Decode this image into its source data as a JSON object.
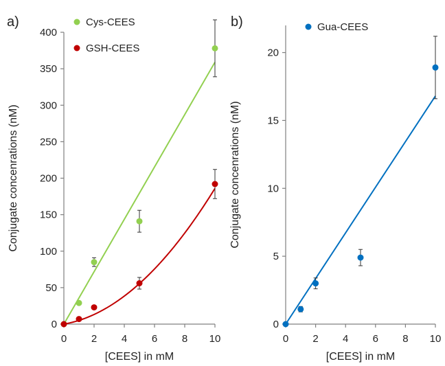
{
  "chart_data": [
    {
      "panel_label": "a)",
      "type": "scatter",
      "xlabel": "[CEES]  in mM",
      "ylabel": "Conjugate concenrations  (nM)",
      "xlim": [
        0,
        10
      ],
      "ylim": [
        0,
        400
      ],
      "xticks": [
        0,
        2,
        4,
        6,
        8,
        10
      ],
      "yticks": [
        0,
        50,
        100,
        150,
        200,
        250,
        300,
        350,
        400
      ],
      "legend_position": "top-left",
      "series": [
        {
          "name": "Cys-CEES",
          "color": "#92d050",
          "points": [
            {
              "x": 0,
              "y": 0
            },
            {
              "x": 1,
              "y": 29
            },
            {
              "x": 2,
              "y": 85,
              "err": 6
            },
            {
              "x": 5,
              "y": 141,
              "err": 15
            },
            {
              "x": 10,
              "y": 378,
              "err": 39
            }
          ],
          "fit": {
            "kind": "linear",
            "from": [
              0,
              0
            ],
            "to": [
              10,
              359
            ]
          }
        },
        {
          "name": "GSH-CEES",
          "color": "#c00000",
          "points": [
            {
              "x": 0,
              "y": 0
            },
            {
              "x": 1,
              "y": 7
            },
            {
              "x": 2,
              "y": 23
            },
            {
              "x": 5,
              "y": 56,
              "err": 8
            },
            {
              "x": 10,
              "y": 192,
              "err": 20
            }
          ],
          "fit": {
            "kind": "quadratic",
            "a": 1.5,
            "b": 3.6,
            "c": 0
          }
        }
      ]
    },
    {
      "panel_label": "b)",
      "type": "scatter",
      "xlabel": "[CEES]  in mM",
      "ylabel": "Conjugate concenrations  (nM)",
      "xlim": [
        0,
        10
      ],
      "ylim": [
        0,
        22
      ],
      "xticks": [
        0,
        2,
        4,
        6,
        8,
        10
      ],
      "yticks": [
        0,
        5,
        10,
        15,
        20
      ],
      "legend_position": "top-left",
      "series": [
        {
          "name": "Gua-CEES",
          "color": "#0070c0",
          "points": [
            {
              "x": 0,
              "y": 0
            },
            {
              "x": 1,
              "y": 1.1,
              "err": 0.2
            },
            {
              "x": 2,
              "y": 3.0,
              "err": 0.4
            },
            {
              "x": 5,
              "y": 4.9,
              "err": 0.6
            },
            {
              "x": 10,
              "y": 18.9,
              "err": 2.3
            }
          ],
          "fit": {
            "kind": "linear",
            "from": [
              0,
              0
            ],
            "to": [
              10,
              16.8
            ]
          }
        }
      ]
    }
  ]
}
